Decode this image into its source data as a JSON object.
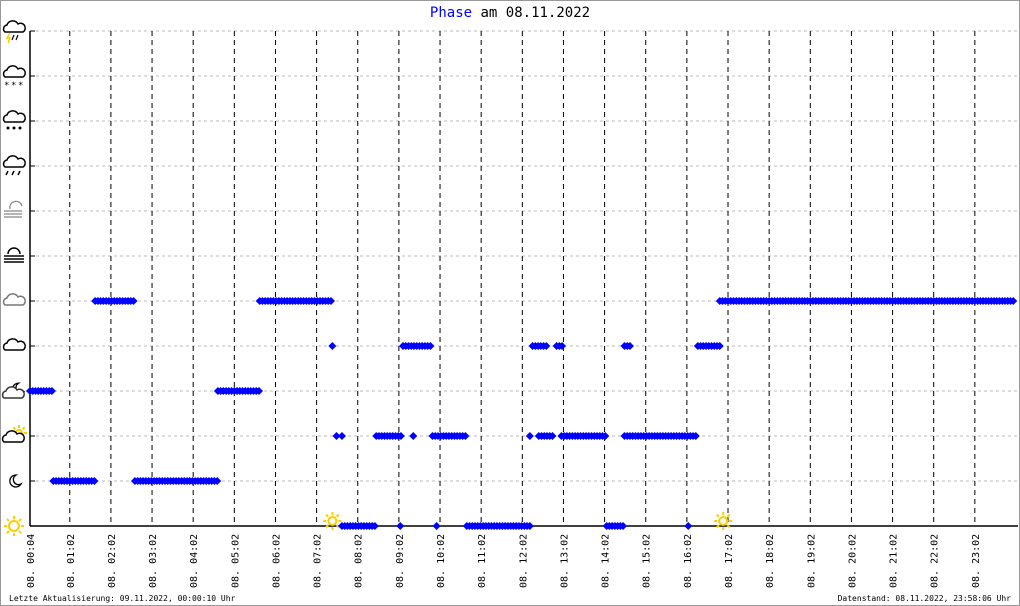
{
  "title": {
    "highlight": "Phase",
    "rest": " am 08.11.2022"
  },
  "footer": {
    "left": "Letzte Aktualisierung: 09.11.2022, 00:00:10 Uhr",
    "right": "Datenstand: 08.11.2022, 23:58:06 Uhr"
  },
  "colors": {
    "series": "#0000ff",
    "grid": "#bbbbbb",
    "axis": "#000000",
    "sun": "#ffcc00"
  },
  "chart_data": {
    "type": "scatter",
    "title": "Phase am 08.11.2022",
    "x_range": [
      "00:04",
      "24:00"
    ],
    "x_ticks": [
      "08. 00:04",
      "08. 01:02",
      "08. 02:02",
      "08. 03:02",
      "08. 04:02",
      "08. 05:02",
      "08. 06:02",
      "08. 07:02",
      "08. 08:02",
      "08. 09:02",
      "08. 10:02",
      "08. 11:02",
      "08. 12:02",
      "08. 13:02",
      "08. 14:02",
      "08. 15:02",
      "08. 16:02",
      "08. 17:02",
      "08. 18:02",
      "08. 19:02",
      "08. 20:02",
      "08. 21:02",
      "08. 22:02",
      "08. 23:02"
    ],
    "y_levels": [
      "sun-icon",
      "moon-icon",
      "sun-cloud-icon",
      "moon-cloud-icon",
      "cloud-icon",
      "overcast-icon",
      "fog-icon",
      "fog-sun-icon",
      "rain-icon",
      "sleet-icon",
      "snow-icon",
      "thunderstorm-icon"
    ],
    "grid": true,
    "markers": [
      {
        "icon": "sunrise-sun-icon",
        "time": "07:25",
        "level": 0
      },
      {
        "icon": "sunset-moon-icon",
        "time": "16:55",
        "level": 0
      }
    ],
    "segments": [
      [
        "00:04",
        "00:38",
        3
      ],
      [
        "00:38",
        "01:39",
        1
      ],
      [
        "01:39",
        "02:37",
        5
      ],
      [
        "02:37",
        "04:38",
        1
      ],
      [
        "04:38",
        "05:39",
        3
      ],
      [
        "05:39",
        "07:25",
        5
      ],
      [
        "07:25",
        "07:25",
        4
      ],
      [
        "07:31",
        "07:31",
        2
      ],
      [
        "07:39",
        "07:39",
        2
      ],
      [
        "07:39",
        "08:29",
        0
      ],
      [
        "08:29",
        "09:08",
        2
      ],
      [
        "09:04",
        "09:04",
        0
      ],
      [
        "09:08",
        "09:50",
        4
      ],
      [
        "09:23",
        "09:23",
        2
      ],
      [
        "09:57",
        "09:57",
        0
      ],
      [
        "09:51",
        "10:41",
        2
      ],
      [
        "10:41",
        "12:14",
        0
      ],
      [
        "12:13",
        "12:13",
        2
      ],
      [
        "12:26",
        "12:48",
        2
      ],
      [
        "12:17",
        "12:39",
        4
      ],
      [
        "12:52",
        "13:02",
        4
      ],
      [
        "12:59",
        "14:05",
        2
      ],
      [
        "14:05",
        "14:30",
        0
      ],
      [
        "14:31",
        "14:41",
        4
      ],
      [
        "14:31",
        "16:18",
        2
      ],
      [
        "16:04",
        "16:04",
        0
      ],
      [
        "16:18",
        "16:50",
        4
      ],
      [
        "16:50",
        "23:58",
        5
      ]
    ]
  }
}
